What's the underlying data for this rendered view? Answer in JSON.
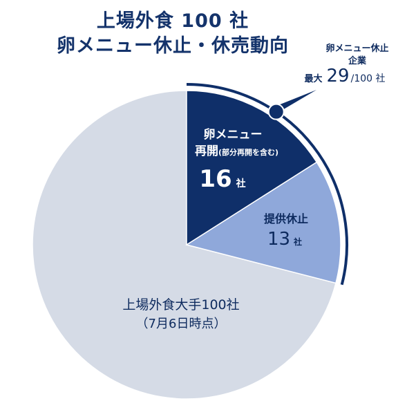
{
  "title_line1": "上場外食 100 社",
  "title_line2": "卵メニュー休止・休売動向",
  "callout": {
    "line1": "卵メニュー休止",
    "line2": "企業",
    "prefix": "最大",
    "value": "29",
    "suffix": "/100 社"
  },
  "colors": {
    "resumed": "#0f2f69",
    "suspended": "#8fa8da",
    "total": "#d5dbe6",
    "bracket": "#0f2f69"
  },
  "chart_data": {
    "type": "pie",
    "total": 100,
    "slices": [
      {
        "name": "resumed",
        "value": 16,
        "label_line1": "卵メニュー",
        "label_line2": "再開",
        "label_note": "(部分再開を含む)",
        "value_text": "16",
        "unit": "社"
      },
      {
        "name": "suspended",
        "value": 13,
        "label_line1": "提供休止",
        "value_text": "13",
        "unit": "社"
      },
      {
        "name": "total",
        "value": 71,
        "label_line1": "上場外食大手100社",
        "label_line2": "（7月6日時点）"
      }
    ]
  }
}
